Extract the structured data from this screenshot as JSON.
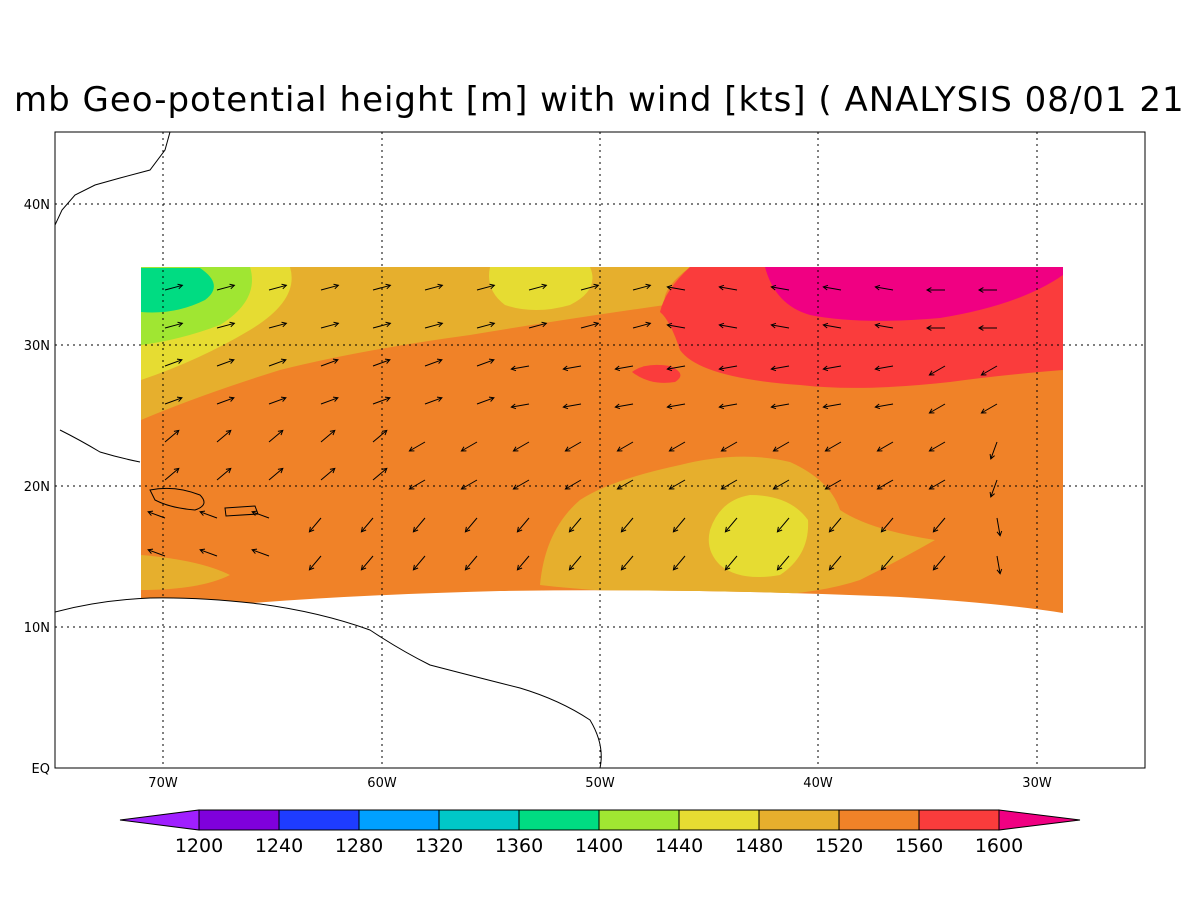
{
  "title": "mb Geo-potential height [m] with wind [kts] ( ANALYSIS 08/01 21",
  "colors": {
    "c1180": "#a01fff",
    "c1200": "#7f00dc",
    "c1240": "#1e3cff",
    "c1280": "#00a0ff",
    "c1320": "#00c8c8",
    "c1360": "#00dc82",
    "c1400": "#a0e632",
    "c1440": "#e6dc32",
    "c1480": "#e6af2d",
    "c1520": "#f08228",
    "c1560": "#fa3c3c",
    "c1600": "#f00082"
  },
  "map": {
    "lat_labels": [
      "EQ",
      "10N",
      "20N",
      "30N",
      "40N"
    ],
    "lon_labels": [
      "70W",
      "60W",
      "50W",
      "40W",
      "30W"
    ]
  },
  "colorbar": {
    "labels": [
      "1200",
      "1240",
      "1280",
      "1320",
      "1360",
      "1400",
      "1440",
      "1480",
      "1520",
      "1560",
      "1600"
    ]
  }
}
